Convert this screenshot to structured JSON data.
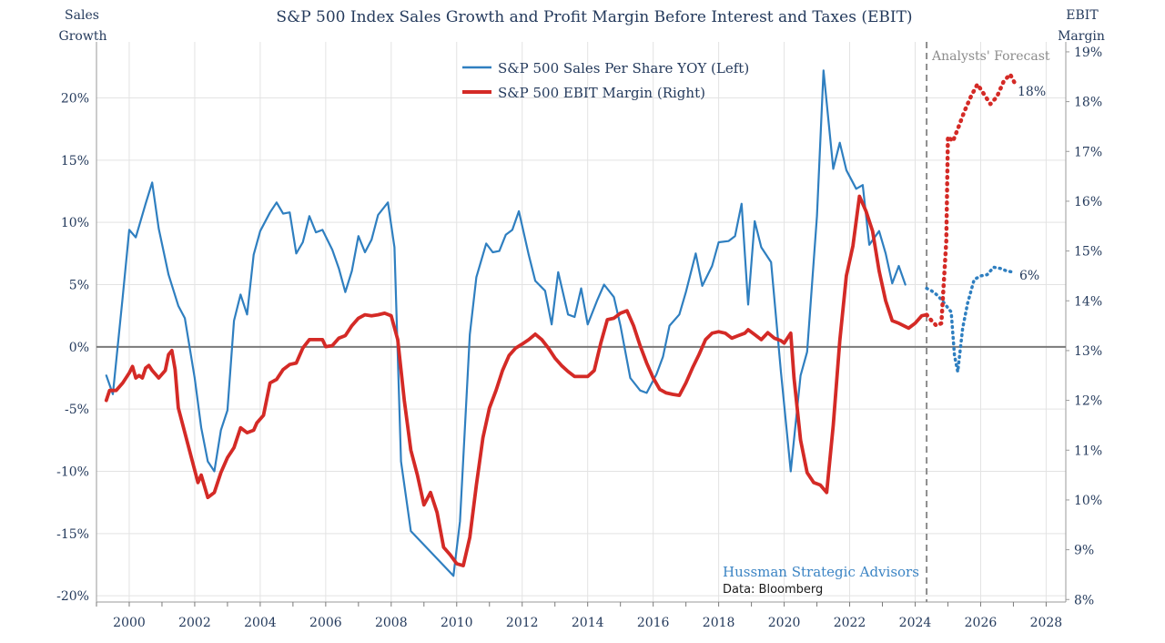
{
  "chart_data": {
    "type": "line",
    "title": "S&P 500 Index Sales Growth and Profit Margin Before Interest and Taxes (EBIT)",
    "left_axis_title": [
      "Sales",
      "Growth"
    ],
    "right_axis_title": [
      "EBIT",
      "Margin"
    ],
    "xlim": [
      1999.0,
      2028.6
    ],
    "x_ticks": [
      2000,
      2002,
      2004,
      2006,
      2008,
      2010,
      2012,
      2014,
      2016,
      2018,
      2020,
      2022,
      2024,
      2026,
      2028
    ],
    "x_tick_labels": [
      "2000",
      "2002",
      "2004",
      "2006",
      "2008",
      "2010",
      "2012",
      "2014",
      "2016",
      "2018",
      "2020",
      "2022",
      "2024",
      "2026",
      "2028"
    ],
    "ylim_left": [
      -20.5,
      24.5
    ],
    "y_ticks_left": [
      -20,
      -15,
      -10,
      -5,
      0,
      5,
      10,
      15,
      20
    ],
    "y_tick_labels_left": [
      "-20%",
      "-15%",
      "-10%",
      "-5%",
      "0%",
      "5%",
      "10%",
      "15%",
      "20%"
    ],
    "ylim_right": [
      7.95,
      19.2
    ],
    "y_ticks_right": [
      8,
      9,
      10,
      11,
      12,
      13,
      14,
      15,
      16,
      17,
      18,
      19
    ],
    "y_tick_labels_right": [
      "8%",
      "9%",
      "10%",
      "11%",
      "12%",
      "13%",
      "14%",
      "15%",
      "16%",
      "17%",
      "18%",
      "19%"
    ],
    "grid": true,
    "legend_position": "top-center",
    "forecast_start": 2024.35,
    "forecast_label": "Analysts' Forecast",
    "credit": {
      "brand": "Hussman Strategic Advisors",
      "source": "Data: Bloomberg"
    },
    "series": [
      {
        "name": "S&P 500 Sales Per Share YOY (Left)",
        "axis": "left",
        "color": "#2f7fc0",
        "style": "solid",
        "points": [
          [
            1999.5,
            -2.3
          ],
          [
            1999.7,
            -3.8
          ],
          [
            2000.0,
            4.0
          ],
          [
            2000.2,
            9.4
          ],
          [
            2000.4,
            8.8
          ],
          [
            2000.6,
            11.5
          ],
          [
            2000.8,
            13.2
          ],
          [
            2001.0,
            9.5
          ],
          [
            2001.2,
            5.8
          ],
          [
            2001.5,
            3.2
          ],
          [
            2001.7,
            2.3
          ],
          [
            2002.0,
            -2.5
          ],
          [
            2002.2,
            -6.5
          ],
          [
            2002.4,
            -9.2
          ],
          [
            2002.6,
            -10.0
          ],
          [
            2002.8,
            -6.7
          ],
          [
            2003.0,
            -5.1
          ],
          [
            2003.2,
            2.1
          ],
          [
            2003.4,
            4.2
          ],
          [
            2003.6,
            2.6
          ],
          [
            2003.8,
            7.4
          ],
          [
            2004.0,
            9.3
          ],
          [
            2004.3,
            10.8
          ],
          [
            2004.5,
            11.6
          ],
          [
            2004.7,
            10.7
          ],
          [
            2004.9,
            10.8
          ],
          [
            2005.1,
            7.5
          ],
          [
            2005.3,
            8.4
          ],
          [
            2005.5,
            10.5
          ],
          [
            2005.7,
            9.2
          ],
          [
            2005.9,
            9.4
          ],
          [
            2006.1,
            7.8
          ],
          [
            2006.3,
            6.3
          ],
          [
            2006.5,
            4.4
          ],
          [
            2006.7,
            6.1
          ],
          [
            2006.9,
            8.9
          ],
          [
            2007.1,
            7.6
          ],
          [
            2007.3,
            8.6
          ],
          [
            2007.5,
            10.6
          ],
          [
            2007.7,
            11.6
          ],
          [
            2007.9,
            8.0
          ],
          [
            2008.1,
            -9.2
          ],
          [
            2008.3,
            -14.8
          ],
          [
            2008.5,
            -18.4
          ],
          [
            2008.7,
            -14.0
          ],
          [
            2008.9,
            1.0
          ],
          [
            2009.1,
            5.6
          ],
          [
            2009.3,
            8.3
          ],
          [
            2009.5,
            7.6
          ],
          [
            2009.7,
            7.7
          ],
          [
            2009.9,
            9.0
          ],
          [
            2010.1,
            9.4
          ],
          [
            2010.3,
            10.9
          ],
          [
            2010.5,
            7.4
          ],
          [
            2010.7,
            5.3
          ],
          [
            2010.9,
            4.5
          ],
          [
            2011.1,
            1.8
          ],
          [
            2011.3,
            6.0
          ],
          [
            2011.5,
            2.6
          ],
          [
            2011.7,
            2.4
          ],
          [
            2011.9,
            4.7
          ],
          [
            2012.1,
            1.8
          ],
          [
            2012.3,
            3.8
          ],
          [
            2012.5,
            5.0
          ],
          [
            2012.7,
            4.0
          ],
          [
            2012.9,
            1.7
          ],
          [
            2013.1,
            -2.5
          ],
          [
            2013.3,
            -3.5
          ],
          [
            2013.5,
            -3.7
          ],
          [
            2013.7,
            -2.2
          ],
          [
            2013.9,
            -0.8
          ],
          [
            2014.1,
            1.7
          ],
          [
            2014.3,
            2.6
          ],
          [
            2014.5,
            4.4
          ],
          [
            2014.7,
            7.5
          ],
          [
            2014.9,
            4.9
          ],
          [
            2015.1,
            6.5
          ],
          [
            2015.3,
            8.4
          ],
          [
            2015.5,
            8.5
          ],
          [
            2015.7,
            8.9
          ],
          [
            2015.9,
            11.5
          ],
          [
            2016.1,
            3.4
          ],
          [
            2016.3,
            10.1
          ],
          [
            2016.5,
            8.0
          ],
          [
            2016.7,
            6.8
          ],
          [
            2016.9,
            -2.0
          ],
          [
            2017.1,
            -10.0
          ],
          [
            2017.3,
            -2.3
          ],
          [
            2017.5,
            -0.4
          ],
          [
            2017.7,
            10.5
          ],
          [
            2017.9,
            22.2
          ],
          [
            2018.1,
            14.3
          ],
          [
            2018.3,
            16.4
          ],
          [
            2018.5,
            14.2
          ],
          [
            2018.7,
            12.7
          ],
          [
            2018.9,
            13.0
          ],
          [
            2019.1,
            8.2
          ],
          [
            2019.3,
            9.3
          ],
          [
            2019.5,
            7.5
          ],
          [
            2019.7,
            5.1
          ],
          [
            2019.9,
            6.5
          ],
          [
            2020.1,
            5.0
          ]
        ],
        "note": "x values here are chart positions; see scaled rendering"
      }
    ]
  }
}
